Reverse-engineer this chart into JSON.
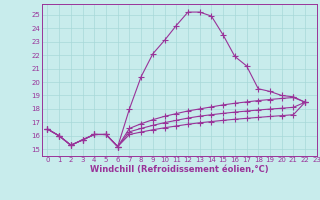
{
  "xlabel": "Windchill (Refroidissement éolien,°C)",
  "background_color": "#c8ecec",
  "grid_color": "#a8d8d8",
  "line_color": "#993399",
  "spine_color": "#993399",
  "xlim": [
    -0.5,
    23
  ],
  "ylim": [
    14.5,
    25.8
  ],
  "xticks": [
    0,
    1,
    2,
    3,
    4,
    5,
    6,
    7,
    8,
    9,
    10,
    11,
    12,
    13,
    14,
    15,
    16,
    17,
    18,
    19,
    20,
    21,
    22,
    23
  ],
  "yticks": [
    15,
    16,
    17,
    18,
    19,
    20,
    21,
    22,
    23,
    24,
    25
  ],
  "series": [
    [
      16.5,
      16.0,
      15.3,
      15.7,
      16.1,
      16.1,
      15.2,
      18.0,
      20.4,
      22.1,
      23.1,
      24.2,
      25.2,
      25.2,
      24.9,
      23.5,
      21.9,
      21.2,
      19.5,
      19.3,
      19.0,
      18.9,
      18.5
    ],
    [
      16.5,
      16.0,
      15.3,
      15.7,
      16.1,
      16.1,
      15.2,
      16.55,
      16.9,
      17.2,
      17.45,
      17.65,
      17.85,
      18.0,
      18.15,
      18.3,
      18.42,
      18.52,
      18.62,
      18.7,
      18.78,
      18.85,
      18.5
    ],
    [
      16.5,
      16.0,
      15.3,
      15.7,
      16.1,
      16.1,
      15.2,
      16.3,
      16.55,
      16.78,
      16.98,
      17.15,
      17.32,
      17.46,
      17.57,
      17.67,
      17.76,
      17.84,
      17.92,
      17.99,
      18.05,
      18.12,
      18.5
    ],
    [
      16.5,
      16.0,
      15.3,
      15.7,
      16.1,
      16.1,
      15.2,
      16.1,
      16.28,
      16.45,
      16.6,
      16.73,
      16.86,
      16.97,
      17.06,
      17.15,
      17.23,
      17.3,
      17.37,
      17.44,
      17.5,
      17.57,
      18.5
    ]
  ],
  "marker": "+",
  "markersize": 4,
  "linewidth": 0.8,
  "tick_fontsize": 5,
  "xlabel_fontsize": 6
}
